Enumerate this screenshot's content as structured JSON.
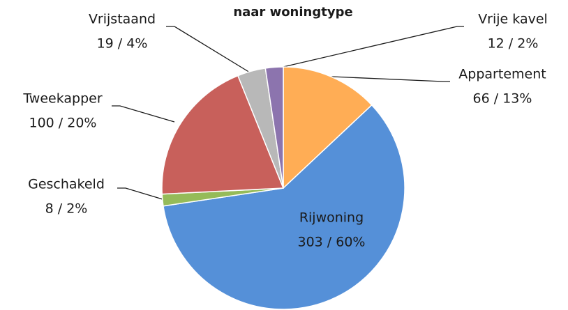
{
  "chart_data": {
    "type": "pie",
    "title": "naar woningtype",
    "categories": [
      "Appartement",
      "Rijwoning",
      "Geschakeld",
      "Tweekapper",
      "Vrijstaand",
      "Vrije kavel"
    ],
    "values": [
      66,
      303,
      8,
      100,
      19,
      12
    ],
    "value_labels": [
      "66 / 13%",
      "303 / 60%",
      "8 / 2%",
      "100 / 20%",
      "19 / 4%",
      "12 / 2%"
    ],
    "colors": [
      "#ffad55",
      "#5590d8",
      "#95bb59",
      "#c8605b",
      "#b8b8b8",
      "#8c74ae"
    ]
  }
}
